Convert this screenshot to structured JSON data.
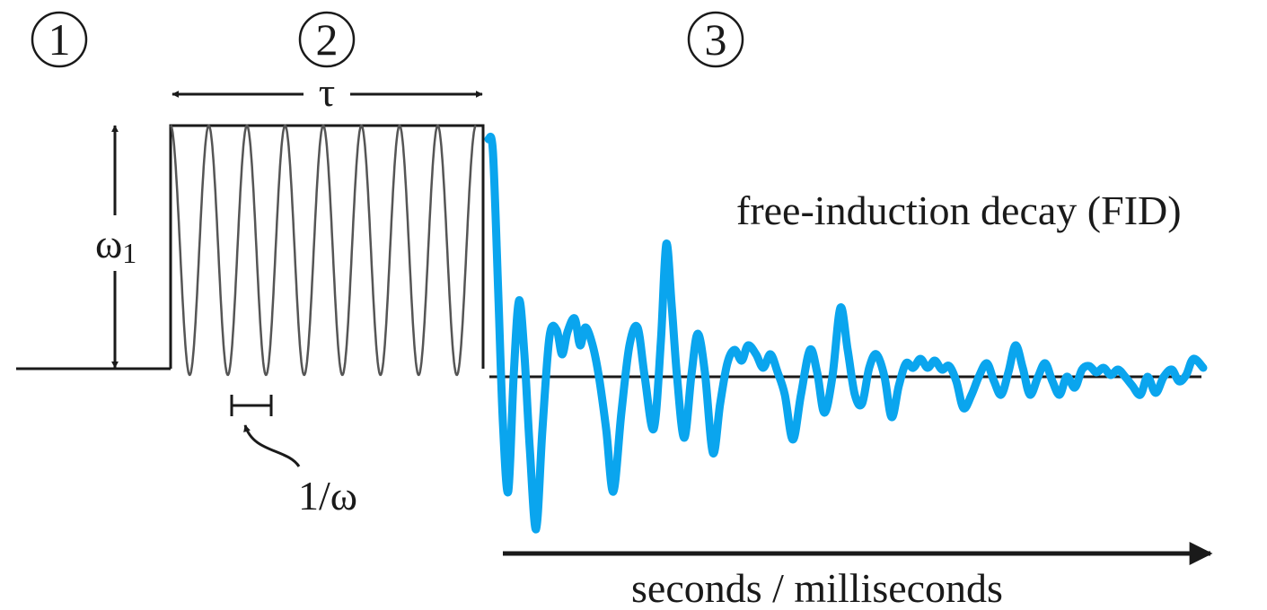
{
  "steps": {
    "one": "1",
    "two": "2",
    "three": "3"
  },
  "labels": {
    "tau": "τ",
    "omega1_base": "ω",
    "omega1_sub": "1",
    "period": "1/ω",
    "fid": "free-induction decay (FID)",
    "time_axis": "seconds / milliseconds"
  },
  "colors": {
    "ink": "#1a1a1a",
    "rf_wave": "#555555",
    "fid_signal": "#0aa5ee"
  },
  "rf_pulse": {
    "cycles": 8
  }
}
